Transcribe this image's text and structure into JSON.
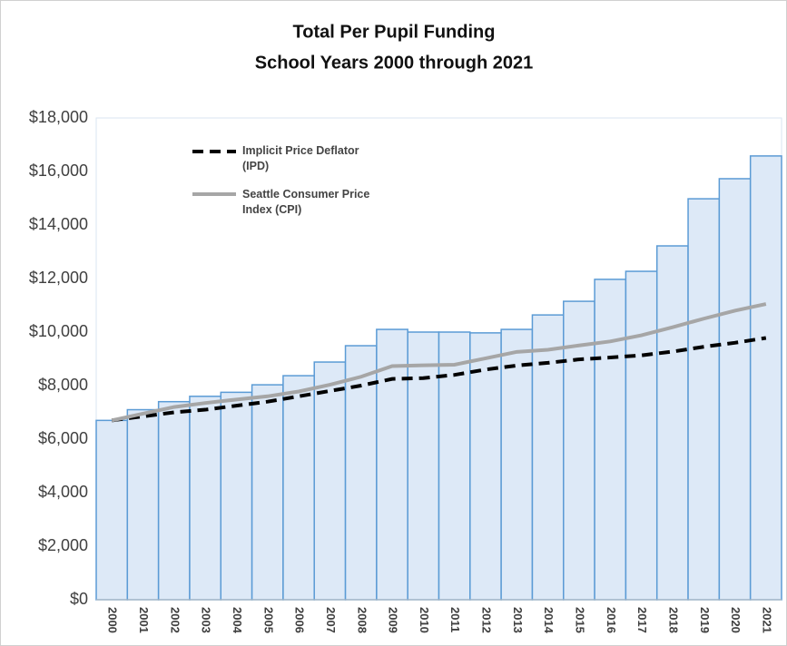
{
  "chart_data": {
    "type": "bar",
    "title": "Total Per Pupil Funding",
    "subtitle": "School Years 2000 through 2021",
    "categories": [
      "2000",
      "2001",
      "2002",
      "2003",
      "2004",
      "2005",
      "2006",
      "2007",
      "2008",
      "2009",
      "2010",
      "2011",
      "2012",
      "2013",
      "2014",
      "2015",
      "2016",
      "2017",
      "2018",
      "2019",
      "2020",
      "2021"
    ],
    "values": [
      6700,
      7100,
      7400,
      7600,
      7750,
      8030,
      8370,
      8880,
      9490,
      10100,
      10000,
      10000,
      9970,
      10100,
      10640,
      11150,
      11970,
      12270,
      13220,
      14980,
      15730,
      16580
    ],
    "color": "#dde9f7",
    "edge_color": "#5b9bd5",
    "lines": [
      {
        "name": "Implicit Price Deflator (IPD)",
        "color": "#000000",
        "dashed": true,
        "values": [
          6700,
          6850,
          7000,
          7100,
          7250,
          7400,
          7600,
          7800,
          8000,
          8250,
          8280,
          8400,
          8600,
          8750,
          8850,
          8980,
          9050,
          9130,
          9270,
          9450,
          9600,
          9780
        ]
      },
      {
        "name": "Seattle Consumer Price Index (CPI)",
        "color": "#a6a6a6",
        "dashed": false,
        "values": [
          6700,
          6950,
          7200,
          7350,
          7480,
          7600,
          7780,
          8030,
          8330,
          8730,
          8760,
          8780,
          9020,
          9260,
          9340,
          9500,
          9650,
          9880,
          10180,
          10500,
          10800,
          11050
        ]
      }
    ],
    "ylim": [
      0,
      18000
    ],
    "yticks": [
      {
        "value": 0,
        "label": "$0"
      },
      {
        "value": 2000,
        "label": "$2,000"
      },
      {
        "value": 4000,
        "label": "$4,000"
      },
      {
        "value": 6000,
        "label": "$6,000"
      },
      {
        "value": 8000,
        "label": "$8,000"
      },
      {
        "value": 10000,
        "label": "$10,000"
      },
      {
        "value": 12000,
        "label": "$12,000"
      },
      {
        "value": 14000,
        "label": "$14,000"
      },
      {
        "value": 16000,
        "label": "$16,000"
      },
      {
        "value": 18000,
        "label": "$18,000"
      }
    ],
    "grid": false,
    "legend": "upper left"
  }
}
